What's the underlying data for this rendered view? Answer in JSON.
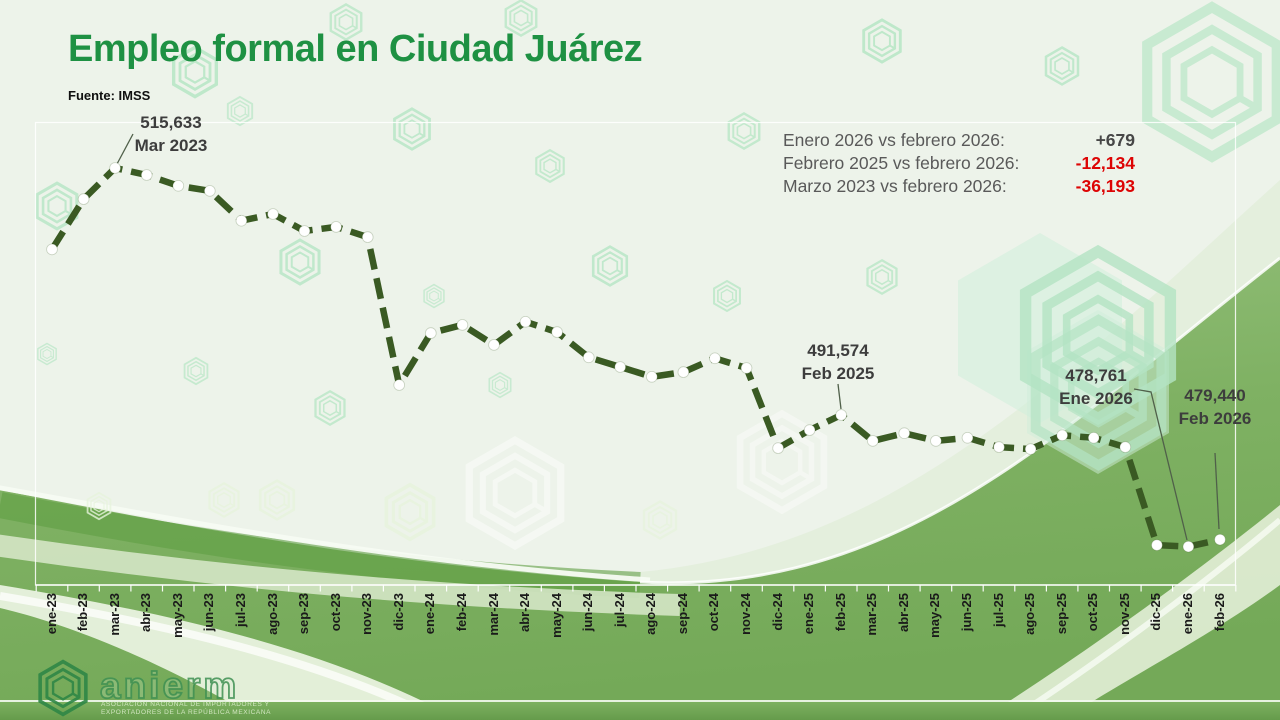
{
  "header": {
    "title": "Empleo formal en Ciudad Juárez",
    "source": "Fuente: IMSS"
  },
  "stats": [
    {
      "label": "Enero 2026 vs febrero 2026:",
      "value": "+679",
      "color": "#474747"
    },
    {
      "label": "Febrero 2025 vs febrero 2026:",
      "value": "-12,134",
      "color": "#dd0404"
    },
    {
      "label": "Marzo 2023 vs febrero 2026:",
      "value": "-36,193",
      "color": "#dd0404"
    }
  ],
  "chart_data": {
    "type": "line",
    "title": "Empleo formal en Ciudad Juárez",
    "xlabel": "",
    "ylabel": "",
    "legend": "none",
    "grid": false,
    "ylim": [
      474000,
      518000
    ],
    "line_color": "#3a5a23",
    "marker_color": "#ffffff",
    "categories": [
      "ene-23",
      "feb-23",
      "mar-23",
      "abr-23",
      "may-23",
      "jun-23",
      "jul-23",
      "ago-23",
      "sep-23",
      "oct-23",
      "nov-23",
      "dic-23",
      "ene-24",
      "feb-24",
      "mar-24",
      "abr-24",
      "may-24",
      "jun-24",
      "jul-24",
      "ago-24",
      "sep-24",
      "oct-24",
      "nov-24",
      "dic-24",
      "ene-25",
      "feb-25",
      "mar-25",
      "abr-25",
      "may-25",
      "jun-25",
      "jul-25",
      "ago-25",
      "sep-25",
      "oct-25",
      "nov-25",
      "dic-25",
      "ene-26",
      "feb-26"
    ],
    "values": [
      507700,
      512600,
      515633,
      514950,
      513900,
      513400,
      510500,
      511150,
      509500,
      509900,
      508900,
      494500,
      499550,
      500350,
      498400,
      500650,
      499650,
      497200,
      496250,
      495300,
      495750,
      497100,
      496150,
      488350,
      490100,
      491574,
      489050,
      489800,
      489050,
      489350,
      488450,
      488250,
      489600,
      489350,
      488450,
      478900,
      478761,
      479440
    ],
    "labeled_points": [
      {
        "category": "mar-23",
        "value_label": "515,633",
        "date_label": "Mar 2023"
      },
      {
        "category": "feb-25",
        "value_label": "491,574",
        "date_label": "Feb 2025"
      },
      {
        "category": "ene-26",
        "value_label": "478,761",
        "date_label": "Ene 2026"
      },
      {
        "category": "feb-26",
        "value_label": "479,440",
        "date_label": "Feb 2026"
      }
    ]
  },
  "logo": {
    "name": "anierm",
    "caption_line1": "ASOCIACIÓN NACIONAL DE IMPORTADORES Y",
    "caption_line2": "EXPORTADORES DE LA REPÚBLICA MEXICANA"
  }
}
